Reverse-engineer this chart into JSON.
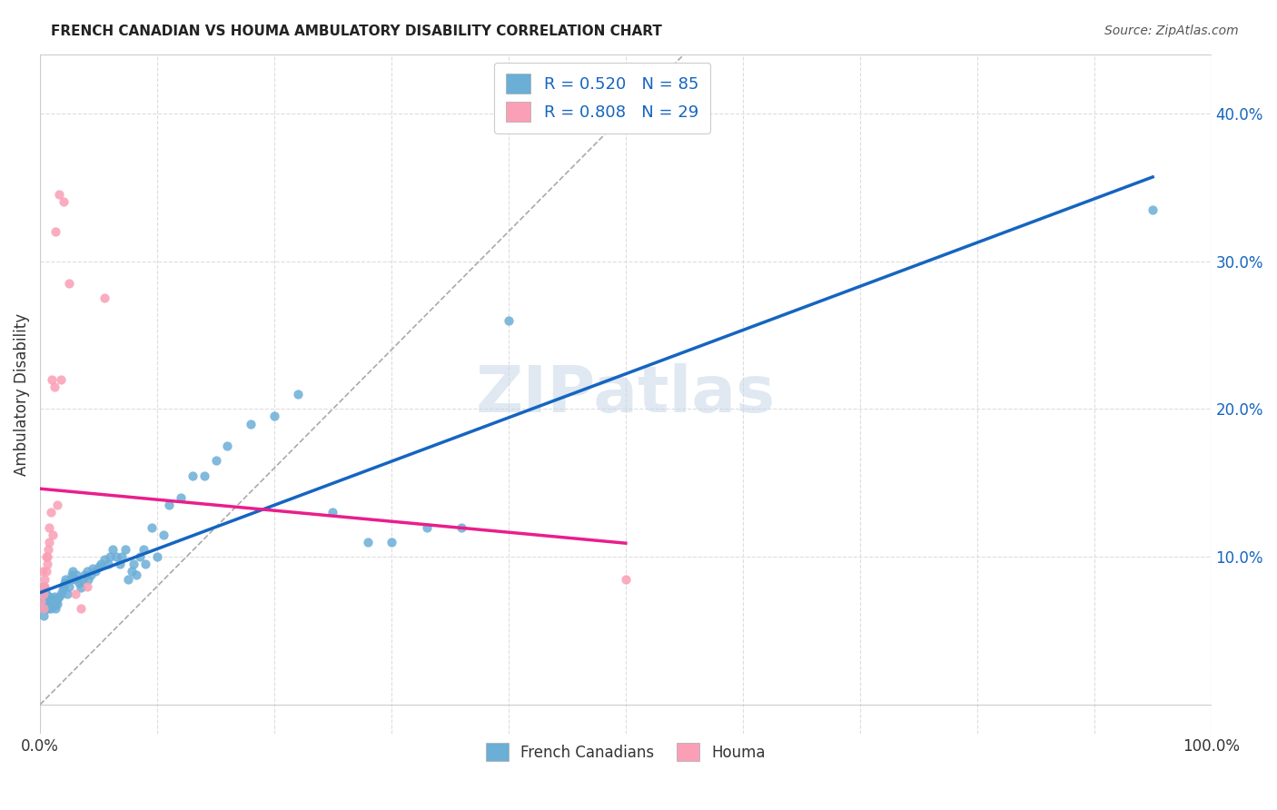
{
  "title": "FRENCH CANADIAN VS HOUMA AMBULATORY DISABILITY CORRELATION CHART",
  "source": "Source: ZipAtlas.com",
  "xlabel": "",
  "ylabel": "Ambulatory Disability",
  "xlim": [
    0,
    1.0
  ],
  "ylim": [
    -0.02,
    0.44
  ],
  "x_tick_labels": [
    "0.0%",
    "100.0%"
  ],
  "x_ticks": [
    0.0,
    1.0
  ],
  "y_tick_labels": [
    "10.0%",
    "20.0%",
    "30.0%",
    "40.0%"
  ],
  "y_ticks": [
    0.1,
    0.2,
    0.3,
    0.4
  ],
  "legend_label1": "R = 0.520   N = 85",
  "legend_label2": "R = 0.808   N = 29",
  "legend_bottom_label1": "French Canadians",
  "legend_bottom_label2": "Houma",
  "blue_color": "#6baed6",
  "pink_color": "#fa9fb5",
  "line_blue": "#1565C0",
  "line_pink": "#E91E8C",
  "watermark": "ZIPatlas",
  "background_color": "#ffffff",
  "grid_color": "#dddddd",
  "french_canadian_x": [
    0.001,
    0.002,
    0.003,
    0.003,
    0.004,
    0.004,
    0.005,
    0.005,
    0.005,
    0.006,
    0.006,
    0.007,
    0.007,
    0.008,
    0.008,
    0.009,
    0.009,
    0.01,
    0.01,
    0.011,
    0.011,
    0.012,
    0.012,
    0.013,
    0.014,
    0.015,
    0.015,
    0.016,
    0.018,
    0.019,
    0.02,
    0.021,
    0.022,
    0.023,
    0.025,
    0.026,
    0.027,
    0.028,
    0.03,
    0.031,
    0.033,
    0.035,
    0.036,
    0.038,
    0.04,
    0.041,
    0.043,
    0.045,
    0.047,
    0.05,
    0.052,
    0.055,
    0.058,
    0.06,
    0.062,
    0.065,
    0.068,
    0.07,
    0.073,
    0.075,
    0.078,
    0.08,
    0.082,
    0.085,
    0.088,
    0.09,
    0.095,
    0.1,
    0.105,
    0.11,
    0.12,
    0.13,
    0.14,
    0.15,
    0.16,
    0.18,
    0.2,
    0.22,
    0.25,
    0.28,
    0.3,
    0.33,
    0.36,
    0.4,
    0.95
  ],
  "french_canadian_y": [
    0.07,
    0.065,
    0.08,
    0.06,
    0.075,
    0.07,
    0.065,
    0.07,
    0.075,
    0.068,
    0.072,
    0.065,
    0.07,
    0.068,
    0.073,
    0.07,
    0.065,
    0.072,
    0.068,
    0.069,
    0.071,
    0.073,
    0.067,
    0.065,
    0.07,
    0.072,
    0.068,
    0.073,
    0.075,
    0.078,
    0.08,
    0.082,
    0.085,
    0.075,
    0.08,
    0.085,
    0.088,
    0.09,
    0.085,
    0.088,
    0.082,
    0.079,
    0.085,
    0.088,
    0.09,
    0.085,
    0.088,
    0.092,
    0.09,
    0.093,
    0.095,
    0.098,
    0.095,
    0.1,
    0.105,
    0.1,
    0.095,
    0.1,
    0.105,
    0.085,
    0.09,
    0.095,
    0.088,
    0.1,
    0.105,
    0.095,
    0.12,
    0.1,
    0.115,
    0.135,
    0.14,
    0.155,
    0.155,
    0.165,
    0.175,
    0.19,
    0.195,
    0.21,
    0.13,
    0.11,
    0.11,
    0.12,
    0.12,
    0.26,
    0.335
  ],
  "houma_x": [
    0.001,
    0.002,
    0.002,
    0.003,
    0.003,
    0.004,
    0.004,
    0.005,
    0.005,
    0.006,
    0.006,
    0.007,
    0.008,
    0.008,
    0.009,
    0.01,
    0.011,
    0.012,
    0.013,
    0.015,
    0.016,
    0.018,
    0.02,
    0.025,
    0.03,
    0.035,
    0.04,
    0.055,
    0.5
  ],
  "houma_y": [
    0.07,
    0.08,
    0.09,
    0.065,
    0.075,
    0.08,
    0.085,
    0.09,
    0.1,
    0.095,
    0.1,
    0.105,
    0.11,
    0.12,
    0.13,
    0.22,
    0.115,
    0.215,
    0.32,
    0.135,
    0.345,
    0.22,
    0.34,
    0.285,
    0.075,
    0.065,
    0.08,
    0.275,
    0.085
  ]
}
